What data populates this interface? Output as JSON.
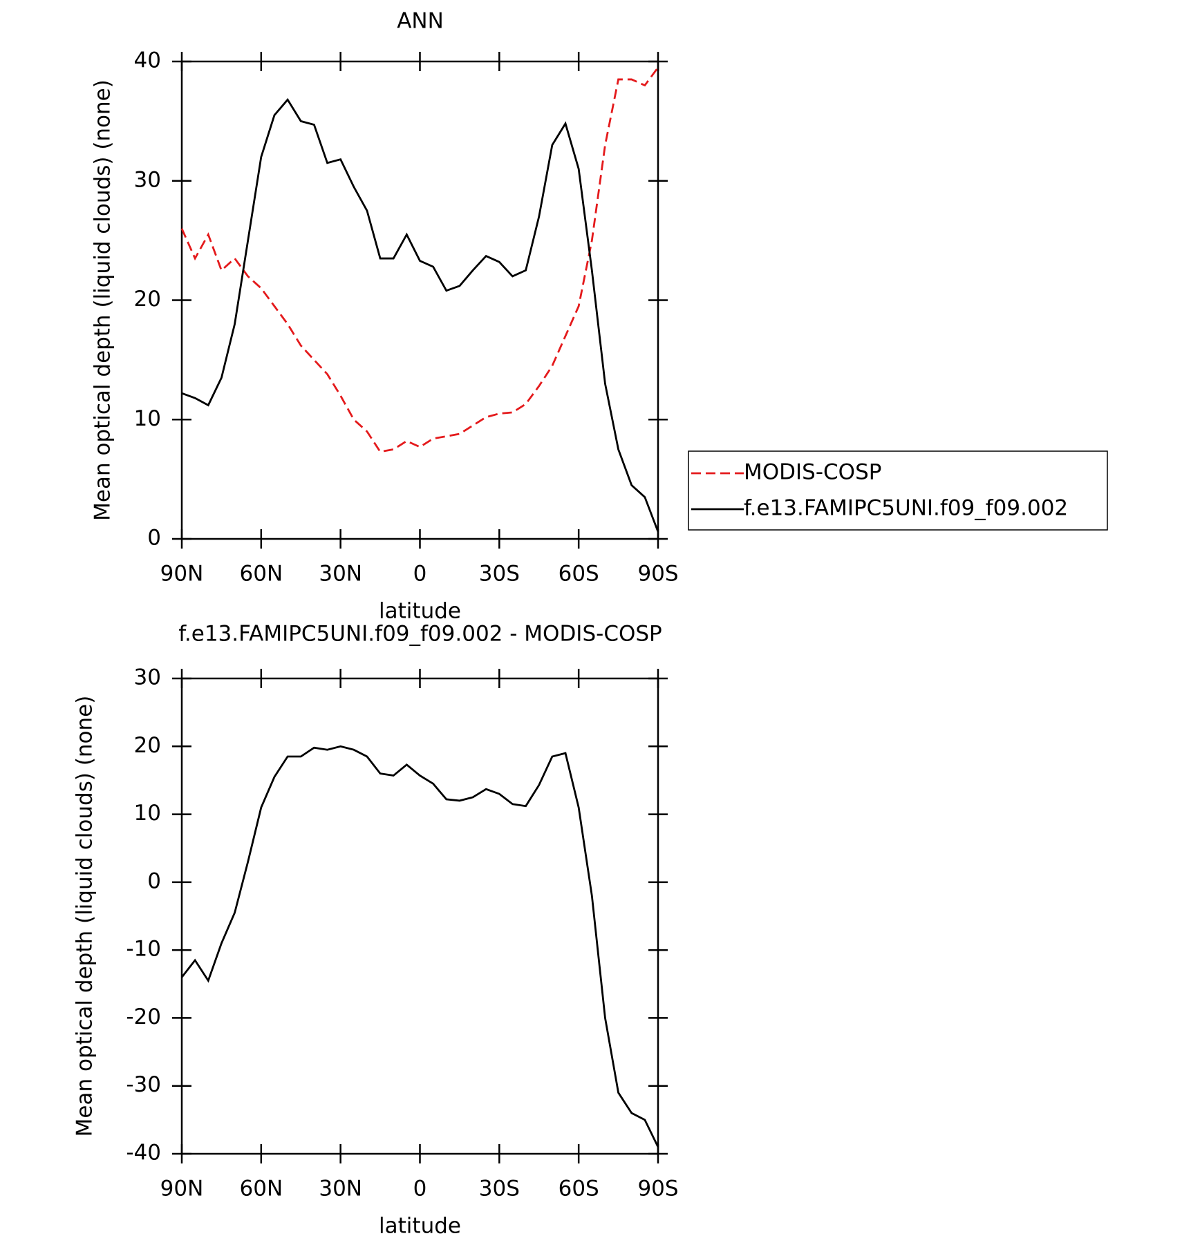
{
  "chart_data": [
    {
      "type": "line",
      "title": "ANN",
      "x_label": "latitude",
      "y_label": "Mean optical depth (liquid clouds) (none)",
      "xlim": [
        90,
        -90
      ],
      "ylim": [
        0,
        40
      ],
      "xticks": [
        {
          "value": 90,
          "label": "90N"
        },
        {
          "value": 60,
          "label": "60N"
        },
        {
          "value": 30,
          "label": "30N"
        },
        {
          "value": 0,
          "label": "0"
        },
        {
          "value": -30,
          "label": "30S"
        },
        {
          "value": -60,
          "label": "60S"
        },
        {
          "value": -90,
          "label": "90S"
        }
      ],
      "yticks": [
        0,
        10,
        20,
        30,
        40
      ],
      "x": [
        90,
        85,
        80,
        75,
        70,
        65,
        60,
        55,
        50,
        45,
        40,
        35,
        30,
        25,
        20,
        15,
        10,
        5,
        0,
        -5,
        -10,
        -15,
        -20,
        -25,
        -30,
        -35,
        -40,
        -45,
        -50,
        -55,
        -60,
        -65,
        -70,
        -75,
        -80,
        -85,
        -90
      ],
      "series": [
        {
          "name": "MODIS-COSP",
          "color": "#e41a1c",
          "line_style": "dashed",
          "values": [
            26,
            23.5,
            25.5,
            22.5,
            23.5,
            22,
            21,
            19.5,
            18,
            16.2,
            15,
            13.8,
            12,
            10,
            9,
            7.3,
            7.5,
            8.2,
            7.7,
            8.4,
            8.6,
            8.8,
            9.5,
            10.2,
            10.5,
            10.6,
            11.3,
            12.8,
            14.5,
            17,
            19.5,
            25,
            33,
            38.5,
            38.5,
            38,
            39.5
          ]
        },
        {
          "name": "f.e13.FAMIPC5UNI.f09_f09.002",
          "color": "#000000",
          "line_style": "solid",
          "values": [
            12.2,
            11.8,
            11.2,
            13.5,
            18,
            25,
            32,
            35.5,
            36.8,
            35,
            34.7,
            31.5,
            31.8,
            29.5,
            27.5,
            23.5,
            23.5,
            25.5,
            23.3,
            22.8,
            20.8,
            21.2,
            22.5,
            23.7,
            23.2,
            22,
            22.5,
            27,
            33,
            34.8,
            31,
            22.5,
            13,
            7.5,
            4.5,
            3.5,
            0.6
          ]
        }
      ]
    },
    {
      "type": "line",
      "title": "f.e13.FAMIPC5UNI.f09_f09.002 - MODIS-COSP",
      "x_label": "latitude",
      "y_label": "Mean optical depth (liquid clouds) (none)",
      "xlim": [
        90,
        -90
      ],
      "ylim": [
        -40,
        30
      ],
      "xticks": [
        {
          "value": 90,
          "label": "90N"
        },
        {
          "value": 60,
          "label": "60N"
        },
        {
          "value": 30,
          "label": "30N"
        },
        {
          "value": 0,
          "label": "0"
        },
        {
          "value": -30,
          "label": "30S"
        },
        {
          "value": -60,
          "label": "60S"
        },
        {
          "value": -90,
          "label": "90S"
        }
      ],
      "yticks": [
        -40,
        -30,
        -20,
        -10,
        0,
        10,
        20,
        30
      ],
      "x": [
        90,
        85,
        80,
        75,
        70,
        65,
        60,
        55,
        50,
        45,
        40,
        35,
        30,
        25,
        20,
        15,
        10,
        5,
        0,
        -5,
        -10,
        -15,
        -20,
        -25,
        -30,
        -35,
        -40,
        -45,
        -50,
        -55,
        -60,
        -65,
        -70,
        -75,
        -80,
        -85,
        -90
      ],
      "series": [
        {
          "color": "#000000",
          "line_style": "solid",
          "values": [
            -14,
            -11.5,
            -14.5,
            -9,
            -4.5,
            3,
            11,
            15.5,
            18.5,
            18.5,
            19.8,
            19.5,
            20,
            19.5,
            18.5,
            16,
            15.7,
            17.3,
            15.7,
            14.5,
            12.2,
            12,
            12.5,
            13.7,
            13,
            11.5,
            11.2,
            14.3,
            18.5,
            19,
            11,
            -2,
            -20,
            -31,
            -34,
            -35,
            -39
          ]
        }
      ]
    }
  ]
}
